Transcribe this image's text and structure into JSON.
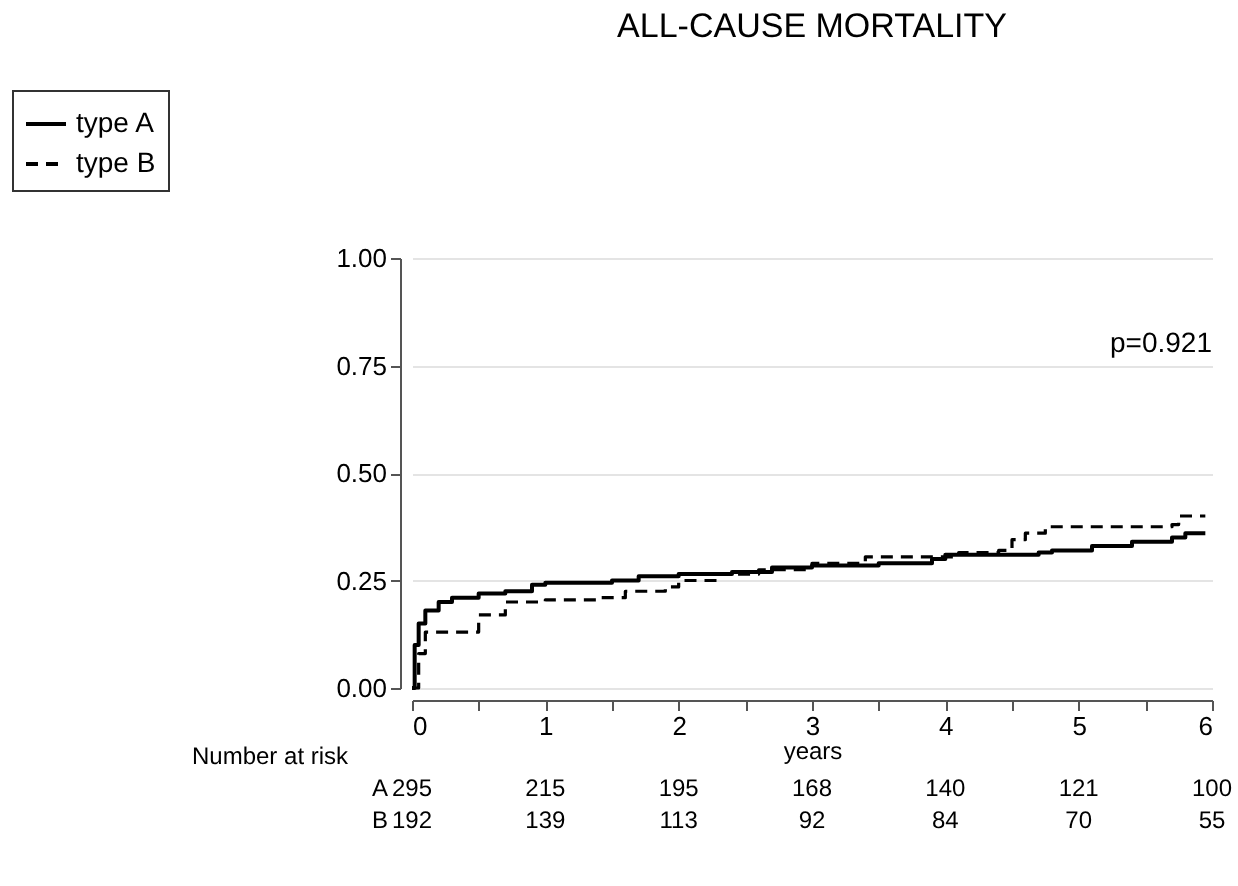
{
  "chart_data": {
    "type": "step",
    "title": "ALL-CAUSE MORTALITY",
    "xlabel": "years",
    "annotations": [
      "p=0.921",
      "Number at risk",
      "A 295 215 195 168 140 121 100",
      "B 192 139 113 92 84 70 55"
    ],
    "xlim": [
      0,
      6
    ],
    "ylim": [
      0,
      1
    ],
    "xticks": [
      0,
      {
        "value": 0.5,
        "label": null
      },
      1,
      {
        "value": 1.5,
        "label": null
      },
      2,
      {
        "value": 2.5,
        "label": null
      },
      3,
      {
        "value": 3.5,
        "label": null
      },
      4,
      {
        "value": 4.5,
        "label": null
      },
      5,
      {
        "value": 5.5,
        "label": null
      },
      6
    ],
    "yticks": [
      {
        "value": 0,
        "label": "0.00"
      },
      {
        "value": 0.25,
        "label": "0.25"
      },
      {
        "value": 0.5,
        "label": "0.50"
      },
      {
        "value": 0.75,
        "label": "0.75"
      },
      {
        "value": 1,
        "label": "1.00"
      }
    ],
    "grid": "y",
    "legend": "top left",
    "series": [
      {
        "name": "type A",
        "color": "#000000",
        "line_style": "solid",
        "x": [
          0,
          0.02,
          0.05,
          0.1,
          0.2,
          0.3,
          0.5,
          0.7,
          0.9,
          1.0,
          1.5,
          1.7,
          2.0,
          2.4,
          2.7,
          3.0,
          3.5,
          3.9,
          4.0,
          4.7,
          4.8,
          5.1,
          5.4,
          5.7,
          5.8,
          5.95
        ],
        "values": [
          0,
          0.1,
          0.15,
          0.18,
          0.2,
          0.21,
          0.22,
          0.225,
          0.24,
          0.245,
          0.25,
          0.26,
          0.265,
          0.27,
          0.28,
          0.285,
          0.29,
          0.3,
          0.31,
          0.315,
          0.32,
          0.33,
          0.34,
          0.35,
          0.36,
          0.36
        ]
      },
      {
        "name": "type B",
        "color": "#000000",
        "line_style": "dashed",
        "x": [
          0,
          0.05,
          0.1,
          0.5,
          0.7,
          1.0,
          1.4,
          1.6,
          1.9,
          2.0,
          2.3,
          2.6,
          3.0,
          3.4,
          3.9,
          4.1,
          4.4,
          4.5,
          4.6,
          4.75,
          5.7,
          5.75,
          5.95
        ],
        "values": [
          0,
          0.08,
          0.13,
          0.17,
          0.2,
          0.205,
          0.21,
          0.225,
          0.235,
          0.25,
          0.265,
          0.275,
          0.29,
          0.305,
          0.305,
          0.315,
          0.32,
          0.345,
          0.36,
          0.375,
          0.38,
          0.4,
          0.4
        ]
      }
    ]
  }
}
